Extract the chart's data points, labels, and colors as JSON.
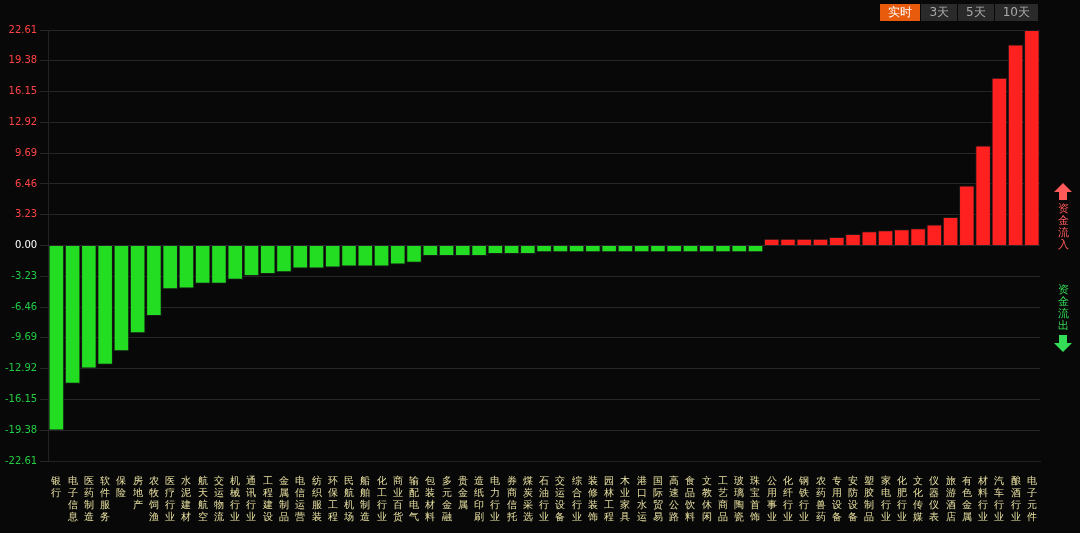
{
  "chart_data": {
    "type": "bar",
    "categories": [
      "银行",
      "电子信息",
      "医药制造",
      "软件服务",
      "保险",
      "房地产",
      "农牧饲渔",
      "医疗行业",
      "水泥建材",
      "航天航空",
      "交运物流",
      "机械行业",
      "通讯行业",
      "工程建设",
      "金属制品",
      "电信运营",
      "纺织服装",
      "环保工程",
      "民航机场",
      "船舶制造",
      "化工行业",
      "商业百货",
      "输配电气",
      "包装材料",
      "多元金融",
      "贵金属",
      "造纸印刷",
      "电力行业",
      "券商信托",
      "煤炭采选",
      "石油行业",
      "交运设备",
      "综合行业",
      "装修装饰",
      "园林工程",
      "木业家具",
      "港口水运",
      "国际贸易",
      "高速公路",
      "食品饮料",
      "文教休闲",
      "工艺商品",
      "玻璃陶瓷",
      "珠宝首饰",
      "公用事业",
      "化纤行业",
      "钢铁行业",
      "农药兽药",
      "专用设备",
      "安防设备",
      "塑胶制品",
      "家电行业",
      "化肥行业",
      "文化传媒",
      "仪器仪表",
      "旅游酒店",
      "有色金属",
      "材料行业",
      "汽车行业",
      "酿酒行业",
      "电子元件"
    ],
    "values": [
      -19.4,
      -14.5,
      -12.9,
      -12.5,
      -11.1,
      -9.2,
      -7.4,
      -4.6,
      -4.5,
      -4.0,
      -4.0,
      -3.6,
      -3.2,
      -3.0,
      -2.8,
      -2.4,
      -2.4,
      -2.3,
      -2.2,
      -2.2,
      -2.2,
      -2.0,
      -1.8,
      -1.1,
      -1.1,
      -1.1,
      -1.1,
      -0.9,
      -0.9,
      -0.9,
      -0.7,
      -0.7,
      -0.7,
      -0.7,
      -0.7,
      -0.7,
      -0.7,
      -0.7,
      -0.7,
      -0.7,
      -0.7,
      -0.7,
      -0.7,
      -0.7,
      0.7,
      0.7,
      0.7,
      0.7,
      0.9,
      1.2,
      1.5,
      1.6,
      1.7,
      1.8,
      2.2,
      3.0,
      6.3,
      10.5,
      17.6,
      21.1,
      22.6
    ],
    "colors": [
      "#22dd22",
      "#22dd22",
      "#22dd22",
      "#22dd22",
      "#22dd22",
      "#22dd22",
      "#22dd22",
      "#22dd22",
      "#22dd22",
      "#22dd22",
      "#22dd22",
      "#22dd22",
      "#22dd22",
      "#22dd22",
      "#22dd22",
      "#22dd22",
      "#22dd22",
      "#22dd22",
      "#22dd22",
      "#22dd22",
      "#22dd22",
      "#22dd22",
      "#22dd22",
      "#22dd22",
      "#22dd22",
      "#22dd22",
      "#22dd22",
      "#22dd22",
      "#22dd22",
      "#22dd22",
      "#22dd22",
      "#22dd22",
      "#22dd22",
      "#22dd22",
      "#22dd22",
      "#22dd22",
      "#22dd22",
      "#22dd22",
      "#22dd22",
      "#22dd22",
      "#22dd22",
      "#22dd22",
      "#22dd22",
      "#22dd22",
      "#ff2020",
      "#ff2020",
      "#ff2020",
      "#ff2020",
      "#ff2020",
      "#ff2020",
      "#ff2020",
      "#ff2020",
      "#ff2020",
      "#ff2020",
      "#ff2020",
      "#ff2020",
      "#ff2020",
      "#ff2020",
      "#ff2020",
      "#ff2020",
      "#ff2020"
    ],
    "ylim": [
      -22.61,
      22.61
    ],
    "yticks": [
      -22.61,
      -19.38,
      -16.15,
      -12.92,
      -9.69,
      -6.46,
      -3.23,
      {
        "value": 0,
        "label": "0.00"
      },
      3.23,
      6.46,
      9.69,
      12.92,
      16.15,
      19.38,
      22.61
    ],
    "grid": "y",
    "legend": false,
    "annotations": [
      "实时",
      "3天",
      "5天",
      "10天",
      "资金流入",
      "资金流出"
    ]
  }
}
